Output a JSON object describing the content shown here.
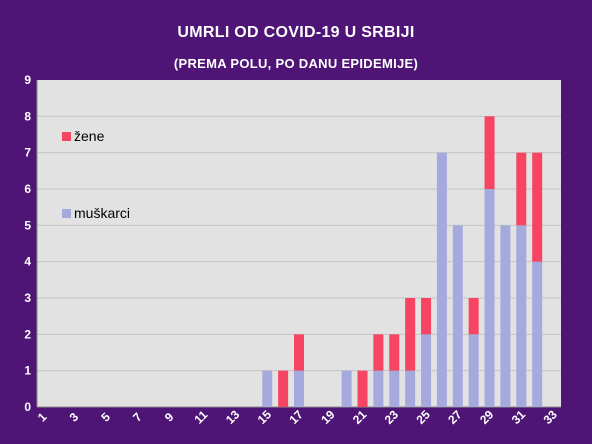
{
  "chart_data": {
    "type": "bar",
    "stacked": true,
    "title": "UMRLI OD COVID-19 U SRBIJI",
    "subtitle": "(PREMA POLU, PO DANU EPIDEMIJE)",
    "xlabel": "",
    "ylabel": "",
    "ylim": [
      0,
      9
    ],
    "yticks": [
      0,
      1,
      2,
      3,
      4,
      5,
      6,
      7,
      8,
      9
    ],
    "grid": true,
    "legend_position": "left",
    "categories": [
      1,
      2,
      3,
      4,
      5,
      6,
      7,
      8,
      9,
      10,
      11,
      12,
      13,
      14,
      15,
      16,
      17,
      18,
      19,
      20,
      21,
      22,
      23,
      24,
      25,
      26,
      27,
      28,
      29,
      30,
      31,
      32,
      33
    ],
    "xtick_labels": [
      "1",
      "3",
      "5",
      "7",
      "9",
      "11",
      "13",
      "15",
      "17",
      "19",
      "21",
      "23",
      "25",
      "27",
      "29",
      "31",
      "33"
    ],
    "series": [
      {
        "name": "muškarci",
        "color": "#a4aadc",
        "values": [
          0,
          0,
          0,
          0,
          0,
          0,
          0,
          0,
          0,
          0,
          0,
          0,
          0,
          0,
          1,
          0,
          1,
          0,
          0,
          1,
          0,
          1,
          1,
          1,
          2,
          7,
          5,
          2,
          6,
          5,
          5,
          4,
          0
        ]
      },
      {
        "name": "žene",
        "color": "#f64563",
        "values": [
          0,
          0,
          0,
          0,
          0,
          0,
          0,
          0,
          0,
          0,
          0,
          0,
          0,
          0,
          0,
          1,
          1,
          0,
          0,
          0,
          1,
          1,
          1,
          2,
          1,
          0,
          0,
          1,
          2,
          0,
          2,
          3,
          0
        ]
      }
    ],
    "colors": {
      "background": "#4e1577",
      "plot_area": "#e2e2e2",
      "text": "#ffffff"
    }
  }
}
